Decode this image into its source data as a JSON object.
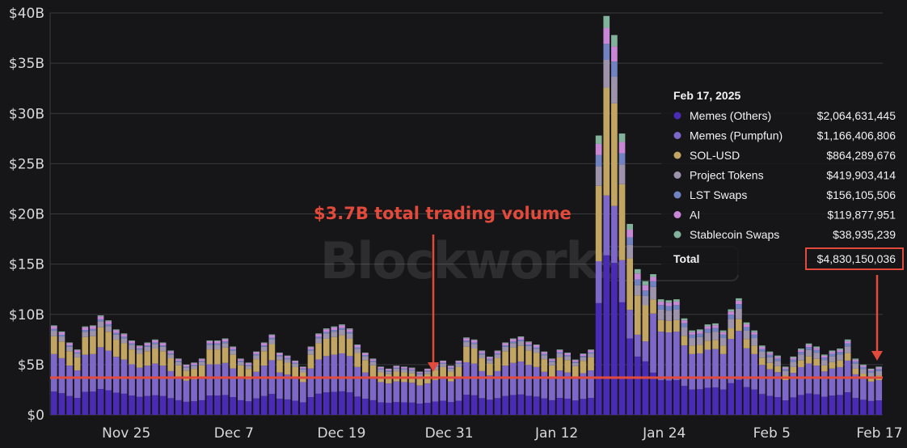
{
  "chart_data": {
    "type": "bar",
    "stacked": true,
    "title": "",
    "xlabel": "",
    "ylabel": "",
    "ylim": [
      0,
      40
    ],
    "y_unit": "$B",
    "y_ticks": [
      "$0",
      "$5B",
      "$10B",
      "$15B",
      "$20B",
      "$25B",
      "$30B",
      "$35B",
      "$40B"
    ],
    "x_ticks": [
      "Nov 25",
      "Dec 7",
      "Dec 19",
      "Dec 31",
      "Jan 12",
      "Jan 24",
      "Feb 5",
      "Feb 17"
    ],
    "x_start": "Nov 17",
    "x_end": "Feb 17",
    "grid": true,
    "series_names": [
      "Memes (Others)",
      "Memes (Pumpfun)",
      "SOL-USD",
      "Project Tokens",
      "LST Swaps",
      "AI",
      "Stablecoin Swaps"
    ],
    "series_colors": [
      "#4a2bb5",
      "#7d67c9",
      "#c2a463",
      "#9d94ab",
      "#7182c2",
      "#c887d6",
      "#82b29b"
    ],
    "totals": [
      8.9,
      8.3,
      7.2,
      6.5,
      8.8,
      8.9,
      9.9,
      9.4,
      8.5,
      8.1,
      7.4,
      6.9,
      7.2,
      7.5,
      7.2,
      6.4,
      5.6,
      5.0,
      5.2,
      5.6,
      7.4,
      7.4,
      7.6,
      6.8,
      5.6,
      5.2,
      6.3,
      7.2,
      8.0,
      6.2,
      5.9,
      5.4,
      4.8,
      6.8,
      8.1,
      8.6,
      8.8,
      9.0,
      8.6,
      7.0,
      6.2,
      5.6,
      4.8,
      4.6,
      4.9,
      4.8,
      4.7,
      4.3,
      4.6,
      5.1,
      5.4,
      4.9,
      5.4,
      7.7,
      7.5,
      6.4,
      5.8,
      6.4,
      7.2,
      7.6,
      7.8,
      7.3,
      7.0,
      6.3,
      5.6,
      6.5,
      6.2,
      5.5,
      6.1,
      6.5,
      27.8,
      39.7,
      37.8,
      28.0,
      19.0,
      14.5,
      13.3,
      14.0,
      11.5,
      11.4,
      11.5,
      9.6,
      8.4,
      8.5,
      9.0,
      9.1,
      8.4,
      10.5,
      11.6,
      9.2,
      8.4,
      6.9,
      6.3,
      5.9,
      4.8,
      5.8,
      6.6,
      7.1,
      6.8,
      6.0,
      6.4,
      6.6,
      7.5,
      5.6,
      5.0,
      4.6,
      4.8
    ],
    "highlighted_date": "Feb 17, 2025",
    "highlighted_values": [
      {
        "name": "Memes (Others)",
        "value": "$2,064,631,445"
      },
      {
        "name": "Memes (Pumpfun)",
        "value": "$1,166,406,806"
      },
      {
        "name": "SOL-USD",
        "value": "$864,289,676"
      },
      {
        "name": "Project Tokens",
        "value": "$419,903,414"
      },
      {
        "name": "LST Swaps",
        "value": "$156,105,506"
      },
      {
        "name": "AI",
        "value": "$119,877,951"
      },
      {
        "name": "Stablecoin Swaps",
        "value": "$38,935,239"
      }
    ],
    "highlighted_total_label": "Total",
    "highlighted_total": "$4,830,150,036",
    "reference_line": {
      "value": 3.7,
      "color": "#e24a3b"
    },
    "annotation": "$3.7B total trading volume",
    "watermark": "Blockworks"
  }
}
